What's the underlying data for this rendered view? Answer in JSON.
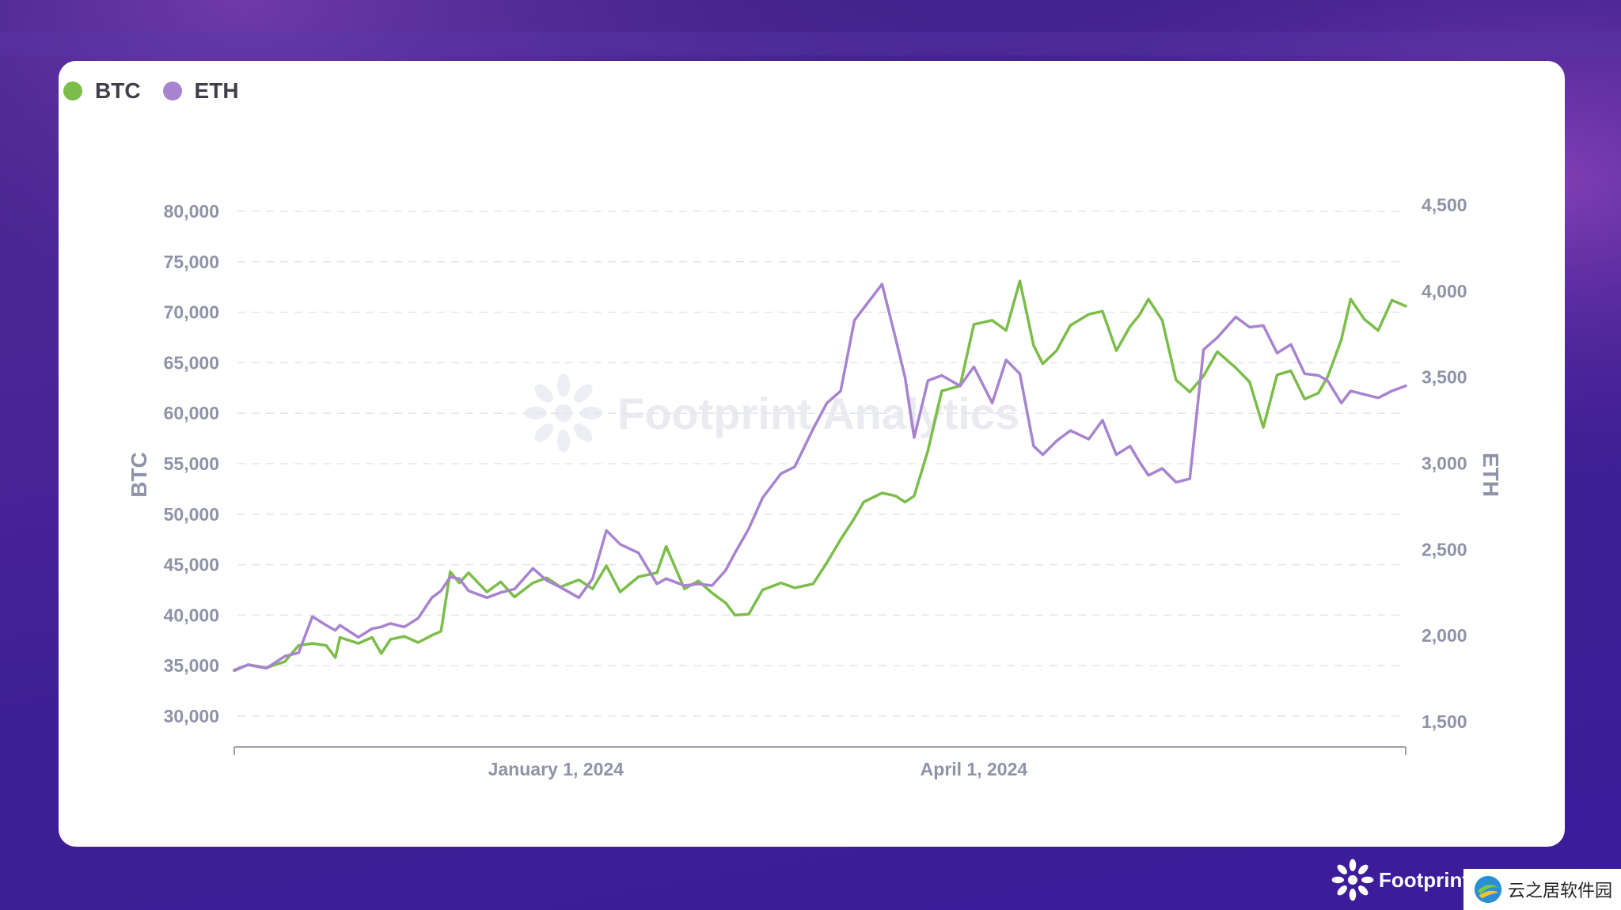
{
  "colors": {
    "btc": "#7cbd4a",
    "eth": "#a883cf",
    "grid": "#e3e5ea",
    "tick": "#8f93a7",
    "axis": "#9da0b2"
  },
  "watermark": {
    "text": "Footprint Analytics",
    "icon": "footprint-logo-icon"
  },
  "brand": {
    "text": "Footprint",
    "icon": "footprint-logo-icon"
  },
  "badge": {
    "text": "云之居软件园",
    "icon": "site-logo-icon"
  },
  "chart_data": {
    "type": "line",
    "grid": true,
    "legend_position": "top-left",
    "legend": [
      "BTC",
      "ETH"
    ],
    "xaxis": {
      "type": "date",
      "range": [
        "2023-10-23",
        "2024-07-04"
      ],
      "tick_labels": [
        {
          "label": "January 1, 2024",
          "date": "2024-01-01"
        },
        {
          "label": "April 1, 2024",
          "date": "2024-04-01"
        }
      ]
    },
    "yaxis_left": {
      "label": "BTC",
      "range": [
        30000,
        80000
      ],
      "ticks": [
        30000,
        35000,
        40000,
        45000,
        50000,
        55000,
        60000,
        65000,
        70000,
        75000,
        80000
      ],
      "tick_labels": [
        "30,000",
        "35,000",
        "40,000",
        "45,000",
        "50,000",
        "55,000",
        "60,000",
        "65,000",
        "70,000",
        "75,000",
        "80,000"
      ]
    },
    "yaxis_right": {
      "label": "ETH",
      "range": [
        1500,
        4500
      ],
      "ticks": [
        1500,
        2000,
        2500,
        3000,
        3500,
        4000,
        4500
      ],
      "tick_labels": [
        "1,500",
        "2,000",
        "2,500",
        "3,000",
        "3,500",
        "4,000",
        "4,500"
      ]
    },
    "series": [
      {
        "name": "BTC",
        "axis": "left",
        "points": [
          [
            "2023-10-23",
            34500
          ],
          [
            "2023-10-26",
            35100
          ],
          [
            "2023-10-30",
            34800
          ],
          [
            "2023-11-03",
            35400
          ],
          [
            "2023-11-06",
            37000
          ],
          [
            "2023-11-09",
            37200
          ],
          [
            "2023-11-12",
            37000
          ],
          [
            "2023-11-14",
            35800
          ],
          [
            "2023-11-15",
            37800
          ],
          [
            "2023-11-19",
            37200
          ],
          [
            "2023-11-22",
            37800
          ],
          [
            "2023-11-24",
            36200
          ],
          [
            "2023-11-26",
            37600
          ],
          [
            "2023-11-29",
            37900
          ],
          [
            "2023-12-02",
            37300
          ],
          [
            "2023-12-05",
            38000
          ],
          [
            "2023-12-07",
            38400
          ],
          [
            "2023-12-09",
            44300
          ],
          [
            "2023-12-11",
            43200
          ],
          [
            "2023-12-13",
            44200
          ],
          [
            "2023-12-17",
            42300
          ],
          [
            "2023-12-20",
            43300
          ],
          [
            "2023-12-23",
            41800
          ],
          [
            "2023-12-27",
            43200
          ],
          [
            "2023-12-30",
            43700
          ],
          [
            "2024-01-02",
            42800
          ],
          [
            "2024-01-06",
            43500
          ],
          [
            "2024-01-09",
            42600
          ],
          [
            "2024-01-12",
            44900
          ],
          [
            "2024-01-15",
            42300
          ],
          [
            "2024-01-19",
            43800
          ],
          [
            "2024-01-23",
            44200
          ],
          [
            "2024-01-25",
            46800
          ],
          [
            "2024-01-29",
            42600
          ],
          [
            "2024-02-01",
            43400
          ],
          [
            "2024-02-04",
            42200
          ],
          [
            "2024-02-07",
            41200
          ],
          [
            "2024-02-09",
            40000
          ],
          [
            "2024-02-12",
            40100
          ],
          [
            "2024-02-15",
            42500
          ],
          [
            "2024-02-19",
            43200
          ],
          [
            "2024-02-22",
            42700
          ],
          [
            "2024-02-26",
            43100
          ],
          [
            "2024-02-29",
            45200
          ],
          [
            "2024-03-03",
            47500
          ],
          [
            "2024-03-06",
            49600
          ],
          [
            "2024-03-08",
            51200
          ],
          [
            "2024-03-12",
            52100
          ],
          [
            "2024-03-15",
            51800
          ],
          [
            "2024-03-17",
            51200
          ],
          [
            "2024-03-19",
            51800
          ],
          [
            "2024-03-22",
            56300
          ],
          [
            "2024-03-25",
            62200
          ],
          [
            "2024-03-29",
            62700
          ],
          [
            "2024-04-01",
            68800
          ],
          [
            "2024-04-05",
            69200
          ],
          [
            "2024-04-08",
            68200
          ],
          [
            "2024-04-11",
            73100
          ],
          [
            "2024-04-14",
            66700
          ],
          [
            "2024-04-16",
            64900
          ],
          [
            "2024-04-19",
            66200
          ],
          [
            "2024-04-22",
            68700
          ],
          [
            "2024-04-26",
            69800
          ],
          [
            "2024-04-29",
            70100
          ],
          [
            "2024-05-02",
            66200
          ],
          [
            "2024-05-05",
            68600
          ],
          [
            "2024-05-07",
            69700
          ],
          [
            "2024-05-09",
            71300
          ],
          [
            "2024-05-12",
            69200
          ],
          [
            "2024-05-15",
            63300
          ],
          [
            "2024-05-18",
            62100
          ],
          [
            "2024-05-21",
            63700
          ],
          [
            "2024-05-24",
            66100
          ],
          [
            "2024-05-28",
            64500
          ],
          [
            "2024-05-31",
            63100
          ],
          [
            "2024-06-03",
            58600
          ],
          [
            "2024-06-06",
            63800
          ],
          [
            "2024-06-09",
            64200
          ],
          [
            "2024-06-12",
            61400
          ],
          [
            "2024-06-15",
            62000
          ],
          [
            "2024-06-17",
            63600
          ],
          [
            "2024-06-20",
            67300
          ],
          [
            "2024-06-22",
            71300
          ],
          [
            "2024-06-25",
            69300
          ],
          [
            "2024-06-28",
            68200
          ],
          [
            "2024-07-01",
            71200
          ],
          [
            "2024-07-04",
            70600
          ]
        ]
      },
      {
        "name": "ETH",
        "axis": "right",
        "points": [
          [
            "2023-10-23",
            1800
          ],
          [
            "2023-10-26",
            1830
          ],
          [
            "2023-10-30",
            1810
          ],
          [
            "2023-11-03",
            1880
          ],
          [
            "2023-11-06",
            1900
          ],
          [
            "2023-11-09",
            2110
          ],
          [
            "2023-11-12",
            2060
          ],
          [
            "2023-11-14",
            2030
          ],
          [
            "2023-11-15",
            2060
          ],
          [
            "2023-11-19",
            1990
          ],
          [
            "2023-11-22",
            2040
          ],
          [
            "2023-11-24",
            2050
          ],
          [
            "2023-11-26",
            2070
          ],
          [
            "2023-11-29",
            2050
          ],
          [
            "2023-12-02",
            2100
          ],
          [
            "2023-12-05",
            2220
          ],
          [
            "2023-12-07",
            2260
          ],
          [
            "2023-12-09",
            2340
          ],
          [
            "2023-12-11",
            2330
          ],
          [
            "2023-12-13",
            2260
          ],
          [
            "2023-12-17",
            2220
          ],
          [
            "2023-12-20",
            2250
          ],
          [
            "2023-12-23",
            2270
          ],
          [
            "2023-12-27",
            2390
          ],
          [
            "2023-12-30",
            2320
          ],
          [
            "2024-01-02",
            2280
          ],
          [
            "2024-01-06",
            2220
          ],
          [
            "2024-01-09",
            2330
          ],
          [
            "2024-01-12",
            2610
          ],
          [
            "2024-01-15",
            2530
          ],
          [
            "2024-01-19",
            2480
          ],
          [
            "2024-01-23",
            2300
          ],
          [
            "2024-01-25",
            2330
          ],
          [
            "2024-01-29",
            2290
          ],
          [
            "2024-02-01",
            2300
          ],
          [
            "2024-02-04",
            2290
          ],
          [
            "2024-02-07",
            2380
          ],
          [
            "2024-02-09",
            2480
          ],
          [
            "2024-02-12",
            2620
          ],
          [
            "2024-02-15",
            2800
          ],
          [
            "2024-02-19",
            2940
          ],
          [
            "2024-02-22",
            2980
          ],
          [
            "2024-02-26",
            3200
          ],
          [
            "2024-02-29",
            3350
          ],
          [
            "2024-03-03",
            3420
          ],
          [
            "2024-03-06",
            3830
          ],
          [
            "2024-03-08",
            3900
          ],
          [
            "2024-03-12",
            4040
          ],
          [
            "2024-03-15",
            3720
          ],
          [
            "2024-03-17",
            3500
          ],
          [
            "2024-03-19",
            3150
          ],
          [
            "2024-03-22",
            3480
          ],
          [
            "2024-03-25",
            3510
          ],
          [
            "2024-03-29",
            3450
          ],
          [
            "2024-04-01",
            3560
          ],
          [
            "2024-04-05",
            3350
          ],
          [
            "2024-04-08",
            3600
          ],
          [
            "2024-04-11",
            3520
          ],
          [
            "2024-04-14",
            3100
          ],
          [
            "2024-04-16",
            3050
          ],
          [
            "2024-04-19",
            3130
          ],
          [
            "2024-04-22",
            3190
          ],
          [
            "2024-04-26",
            3140
          ],
          [
            "2024-04-29",
            3250
          ],
          [
            "2024-05-02",
            3050
          ],
          [
            "2024-05-05",
            3100
          ],
          [
            "2024-05-07",
            3010
          ],
          [
            "2024-05-09",
            2930
          ],
          [
            "2024-05-12",
            2970
          ],
          [
            "2024-05-15",
            2890
          ],
          [
            "2024-05-18",
            2910
          ],
          [
            "2024-05-21",
            3660
          ],
          [
            "2024-05-24",
            3730
          ],
          [
            "2024-05-28",
            3850
          ],
          [
            "2024-05-31",
            3790
          ],
          [
            "2024-06-03",
            3800
          ],
          [
            "2024-06-06",
            3640
          ],
          [
            "2024-06-09",
            3690
          ],
          [
            "2024-06-12",
            3520
          ],
          [
            "2024-06-15",
            3510
          ],
          [
            "2024-06-17",
            3480
          ],
          [
            "2024-06-20",
            3350
          ],
          [
            "2024-06-22",
            3420
          ],
          [
            "2024-06-25",
            3400
          ],
          [
            "2024-06-28",
            3380
          ],
          [
            "2024-07-01",
            3420
          ],
          [
            "2024-07-04",
            3450
          ]
        ]
      }
    ]
  }
}
